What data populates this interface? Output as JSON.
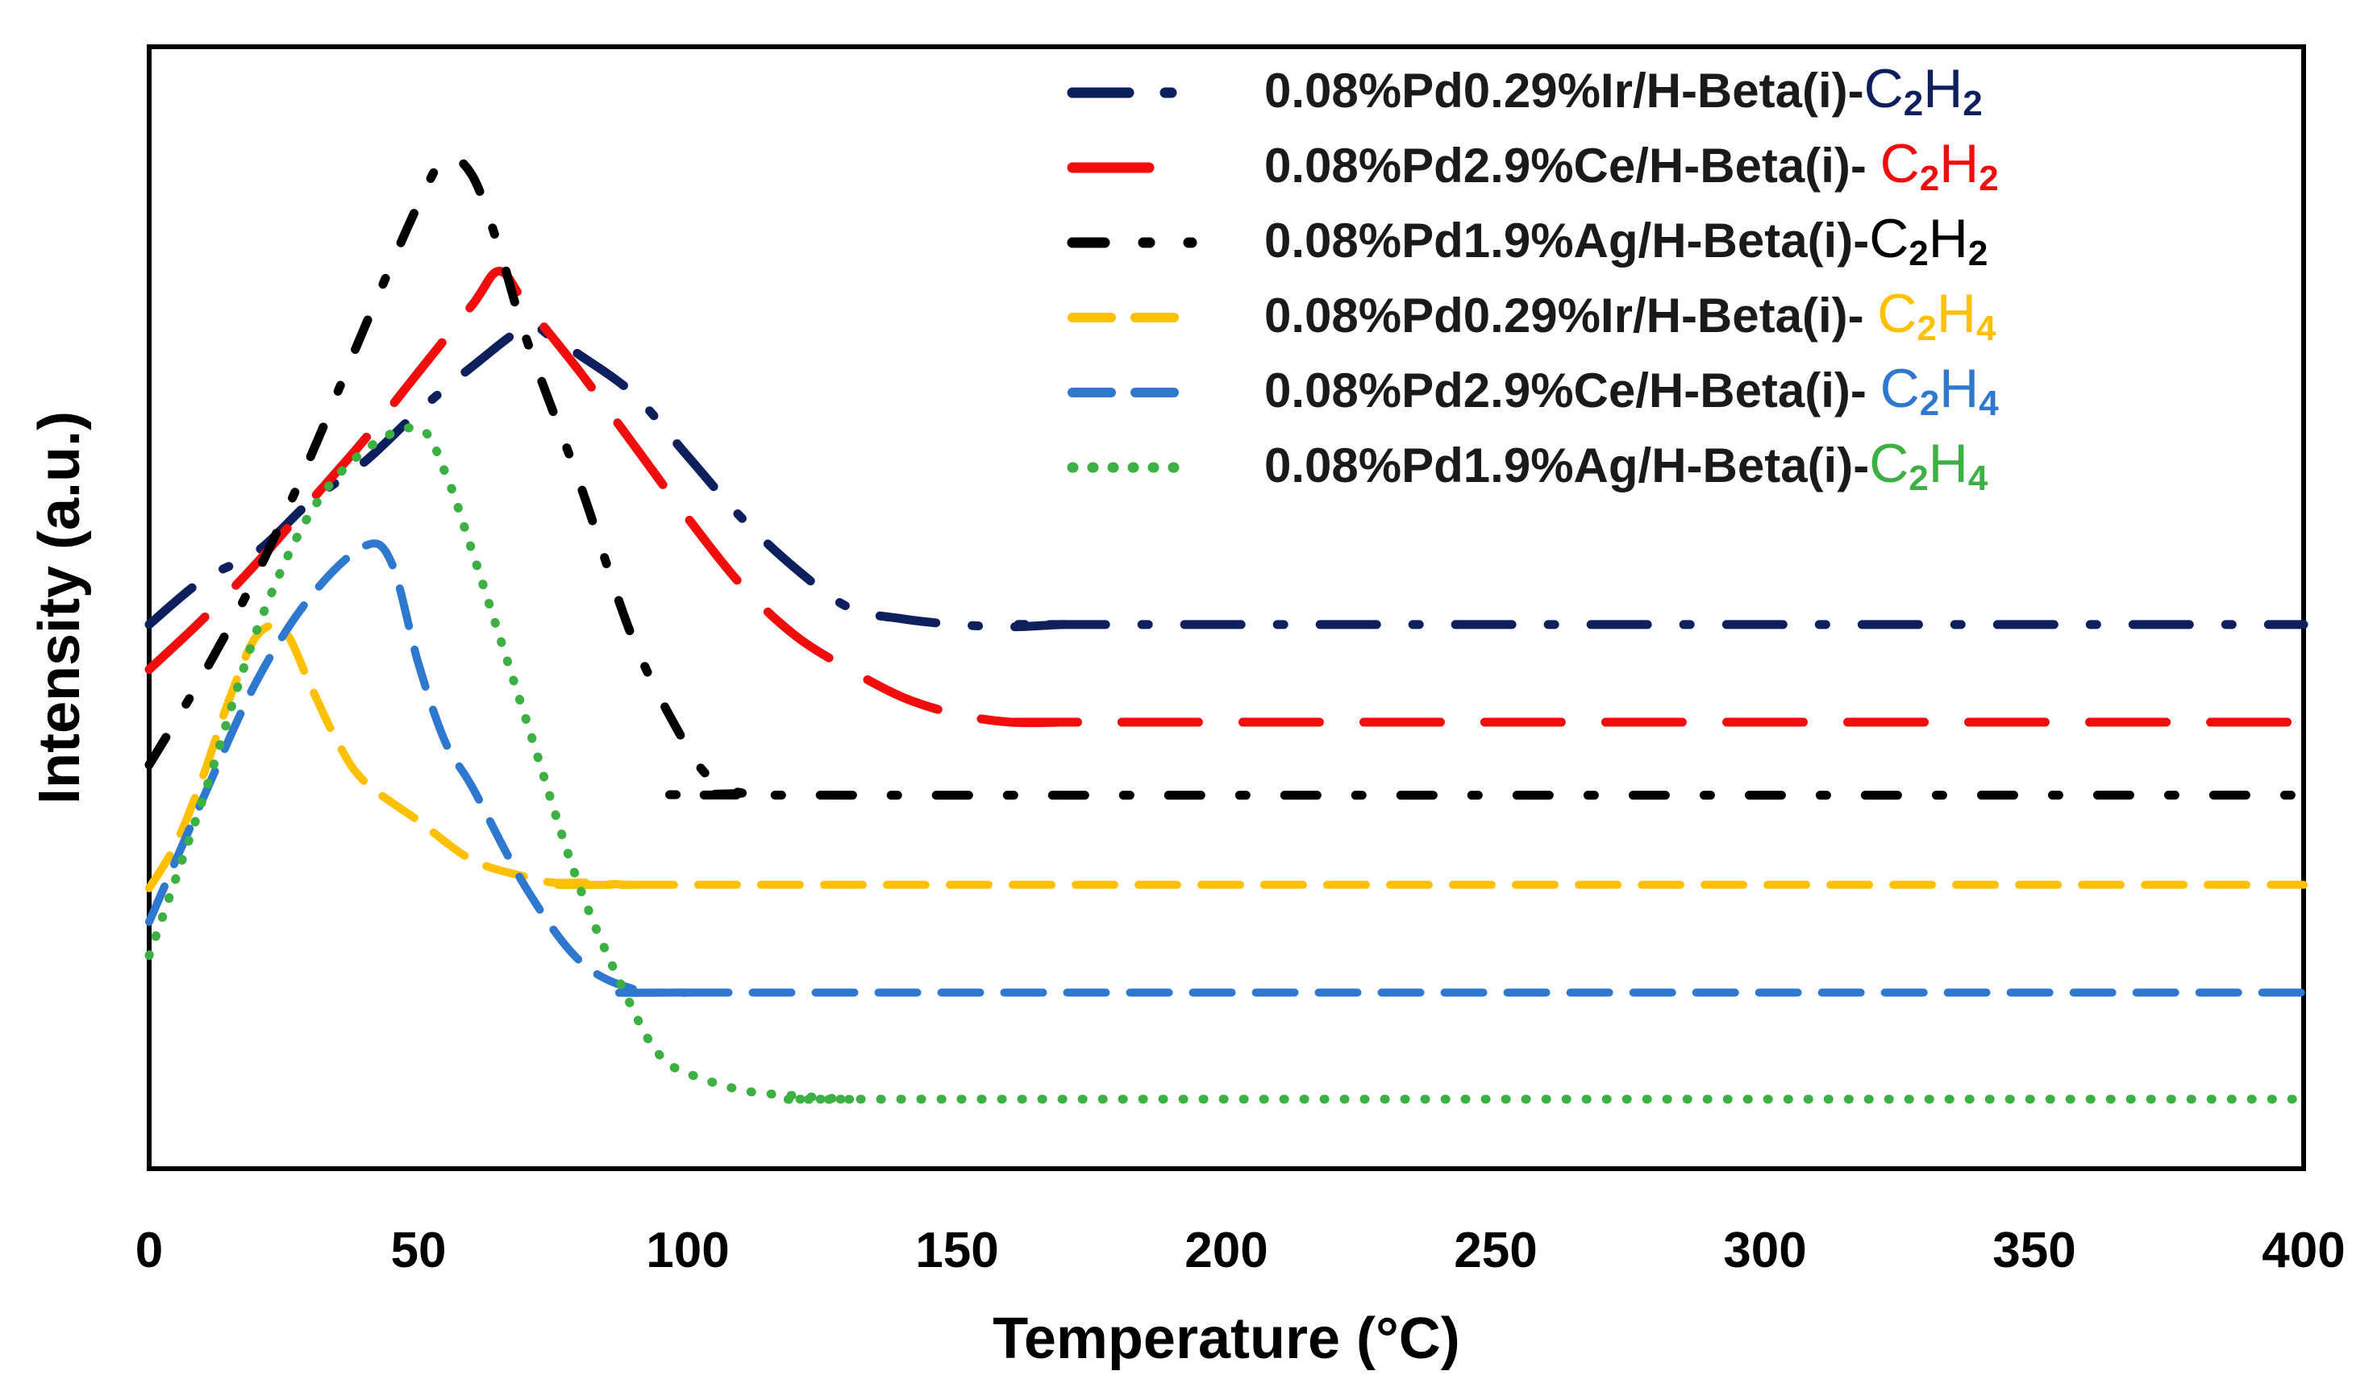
{
  "chart_data": {
    "type": "line",
    "title": "",
    "xlabel": "Temperature (°C)",
    "ylabel": "Intensity (a.u.)",
    "xlim": [
      0,
      400
    ],
    "ylim": [
      0,
      100
    ],
    "x_ticks": [
      "0",
      "50",
      "100",
      "150",
      "200",
      "250",
      "300",
      "350",
      "400"
    ],
    "grid": false,
    "legend_position": "top-right",
    "series": [
      {
        "name": "0.08%Pd0.29%Ir/H-Beta(i)-C2H2",
        "label_prefix": "0.08%Pd0.29%Ir/H-Beta(i)-",
        "formula": {
          "a": "C",
          "a_sub": "2",
          "b": "H",
          "b_sub": "2"
        },
        "color": "#0d1f5c",
        "dash": "long-dash-dot",
        "x": [
          0,
          10,
          20,
          30,
          40,
          50,
          60,
          70,
          75,
          80,
          90,
          100,
          110,
          120,
          130,
          140,
          150,
          160,
          170,
          180,
          400
        ],
        "y": [
          48.5,
          52.5,
          55,
          59.5,
          63,
          67.5,
          71.5,
          75,
          74,
          72.5,
          69,
          63.5,
          58,
          53.5,
          50,
          49,
          48.5,
          48.3,
          48.5,
          48.5,
          48.5
        ]
      },
      {
        "name": "0.08%Pd2.9%Ce/H-Beta(i)-C2H2",
        "label_prefix": "0.08%Pd2.9%Ce/H-Beta(i)- ",
        "formula": {
          "a": "C",
          "a_sub": "2",
          "b": "H",
          "b_sub": "2"
        },
        "color": "#f20d0d",
        "dash": "long-dash",
        "x": [
          0,
          10,
          20,
          30,
          40,
          50,
          60,
          65,
          70,
          80,
          90,
          100,
          110,
          120,
          130,
          140,
          150,
          160,
          170,
          180,
          400
        ],
        "y": [
          44.5,
          49,
          54,
          59.5,
          65,
          71,
          77,
          80,
          77,
          71,
          64.5,
          58,
          52,
          47.5,
          44.5,
          42,
          40.5,
          39.8,
          39.8,
          39.8,
          39.8
        ]
      },
      {
        "name": "0.08%Pd1.9%Ag/H-Beta(i)-C2H2",
        "label_prefix": "0.08%Pd1.9%Ag/H-Beta(i)-",
        "formula": {
          "a": "C",
          "a_sub": "2",
          "b": "H",
          "b_sub": "2"
        },
        "color": "#000000",
        "dash": "dash-dot",
        "x": [
          0,
          10,
          20,
          30,
          40,
          50,
          55,
          60,
          65,
          70,
          80,
          90,
          100,
          105,
          110,
          120,
          400
        ],
        "y": [
          36,
          44,
          53,
          63.5,
          75,
          86,
          90,
          88.5,
          82,
          74,
          61,
          47,
          37.5,
          34.5,
          33.5,
          33.3,
          33.3
        ]
      },
      {
        "name": "0.08%Pd0.29%Ir/H-Beta(i)-C2H4",
        "label_prefix": "0.08%Pd0.29%Ir/H-Beta(i)- ",
        "formula": {
          "a": "C",
          "a_sub": "2",
          "b": "H",
          "b_sub": "4"
        },
        "color": "#ffc000",
        "dash": "dash",
        "x": [
          0,
          5,
          10,
          15,
          20,
          25,
          30,
          35,
          40,
          50,
          60,
          70,
          75,
          80,
          90,
          100,
          400
        ],
        "y": [
          25,
          29,
          35,
          42,
          47.5,
          48,
          43,
          38,
          34.5,
          31,
          27.5,
          26,
          25.5,
          25.5,
          25.3,
          25.3,
          25.3
        ]
      },
      {
        "name": "0.08%Pd2.9%Ce/H-Beta(i)-C2H4",
        "label_prefix": "0.08%Pd2.9%Ce/H-Beta(i)- ",
        "formula": {
          "a": "C",
          "a_sub": "2",
          "b": "H",
          "b_sub": "4"
        },
        "color": "#2f78d0",
        "dash": "dash",
        "x": [
          0,
          10,
          20,
          30,
          40,
          45,
          50,
          55,
          60,
          70,
          80,
          90,
          100,
          110,
          400
        ],
        "y": [
          22,
          33,
          43.5,
          51,
          55.5,
          54,
          45,
          38,
          34,
          25,
          18.5,
          16,
          15.7,
          15.7,
          15.7
        ]
      },
      {
        "name": "0.08%Pd1.9%Ag/H-Beta(i)-C2H4",
        "label_prefix": "0.08%Pd1.9%Ag/H-Beta(i)-",
        "formula": {
          "a": "C",
          "a_sub": "2",
          "b": "H",
          "b_sub": "4"
        },
        "color": "#3cb043",
        "dash": "dot",
        "x": [
          0,
          10,
          20,
          30,
          40,
          50,
          55,
          60,
          70,
          80,
          90,
          95,
          100,
          110,
          120,
          130,
          140,
          400
        ],
        "y": [
          19,
          33,
          48,
          58.5,
          64,
          66,
          62,
          55,
          40,
          25,
          14,
          10,
          8.5,
          7,
          6.5,
          6.2,
          6.2,
          6.2
        ]
      }
    ]
  }
}
